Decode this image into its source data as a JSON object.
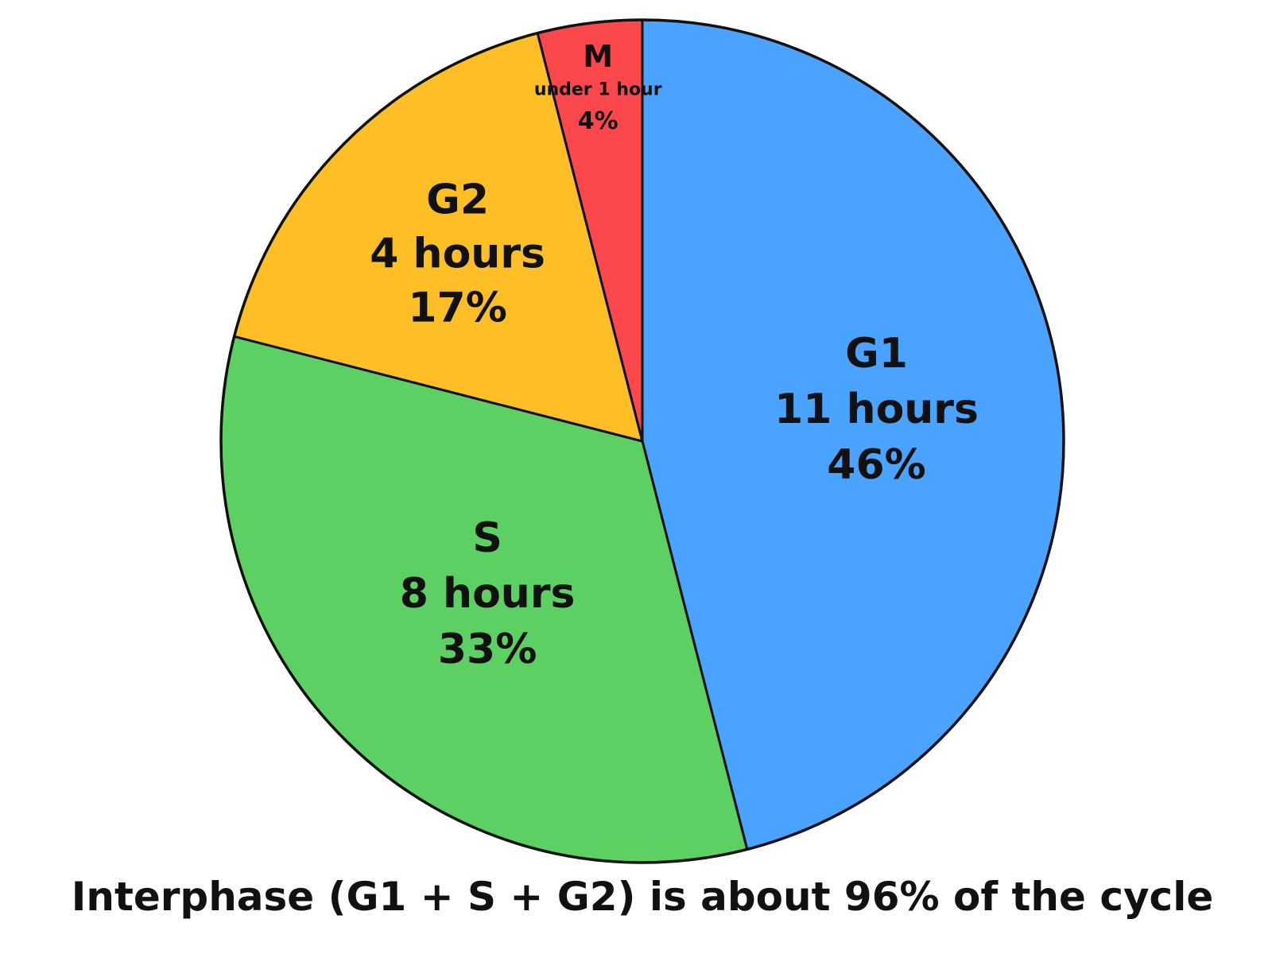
{
  "chart_data": {
    "type": "pie",
    "title": "",
    "caption": "Interphase (G1 + S + G2) is about 96% of the cycle",
    "start": "top",
    "direction": "clockwise",
    "slices": [
      {
        "name": "G1",
        "duration": "11 hours",
        "percent_label": "46%",
        "value": 46,
        "color": "#4aa3ff"
      },
      {
        "name": "S",
        "duration": "8 hours",
        "percent_label": "33%",
        "value": 33,
        "color": "#5cd063"
      },
      {
        "name": "G2",
        "duration": "4 hours",
        "percent_label": "17%",
        "value": 17,
        "color": "#fdbf25"
      },
      {
        "name": "M",
        "duration": "under 1 hour",
        "percent_label": "4%",
        "value": 4,
        "color": "#fc474c"
      }
    ]
  }
}
